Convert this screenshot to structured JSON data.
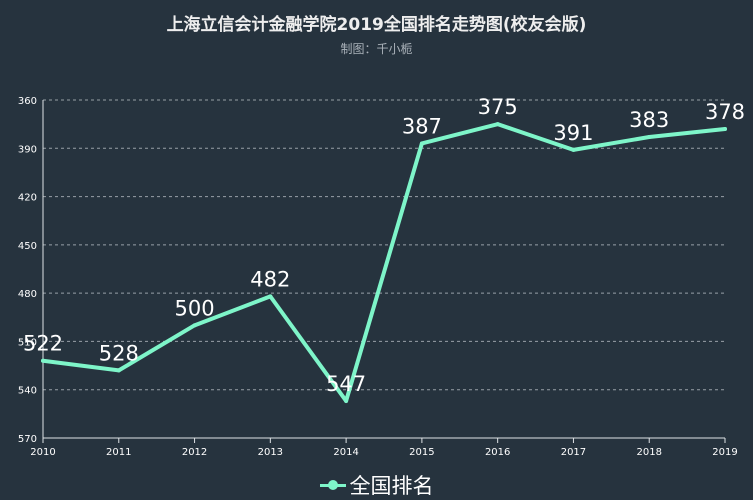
{
  "title": "上海立信会计金融学院2019全国排名走势图(校友会版)",
  "subtitle": "制图：千小栀",
  "colors": {
    "background": "#26333e",
    "line": "#7ef5c9"
  },
  "chart_data": {
    "type": "line",
    "title": "上海立信会计金融学院2019全国排名走势图(校友会版)",
    "subtitle": "制图：千小栀",
    "x": [
      "2010",
      "2011",
      "2012",
      "2013",
      "2014",
      "2015",
      "2016",
      "2017",
      "2018",
      "2019"
    ],
    "series": [
      {
        "name": "全国排名",
        "values": [
          522,
          528,
          500,
          482,
          547,
          387,
          375,
          391,
          383,
          378
        ]
      }
    ],
    "y_ticks": [
      "360",
      "390",
      "420",
      "450",
      "480",
      "510",
      "540",
      "570"
    ],
    "ylim": [
      360,
      570
    ],
    "y_inverted": true,
    "grid": true,
    "legend": "bottom-center"
  }
}
